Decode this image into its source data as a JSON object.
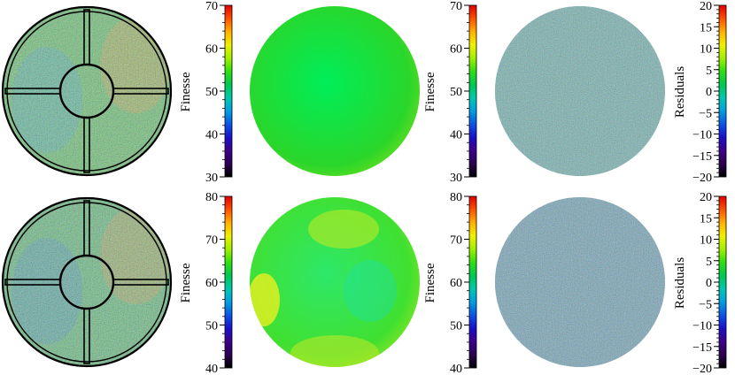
{
  "colormap": [
    "#000000",
    "#2a0052",
    "#3d008a",
    "#1a10c8",
    "#0a55e6",
    "#00a0e0",
    "#00c8b0",
    "#00c850",
    "#30e010",
    "#a0f000",
    "#f0f000",
    "#ffb000",
    "#ff5000",
    "#e00000"
  ],
  "chart_data": [
    {
      "type": "heatmap",
      "row": 1,
      "panel": "measured",
      "description_colors": {
        "base": "#55c05a",
        "accent_left": "#2f9de0",
        "accent_right": "#d8a43a"
      },
      "has_cross_mask": true
    },
    {
      "type": "colorbar",
      "row": 1,
      "label": "Finesse",
      "range": [
        30,
        70
      ],
      "ticks": [
        30,
        40,
        50,
        60,
        70
      ],
      "minor_step": 2
    },
    {
      "type": "heatmap",
      "row": 1,
      "panel": "model",
      "colors": {
        "center": "#00ee5a",
        "edge": "#2ad62a",
        "rim": "#90e41a"
      }
    },
    {
      "type": "colorbar",
      "row": 1,
      "label": "Finesse",
      "range": [
        30,
        70
      ],
      "ticks": [
        30,
        40,
        50,
        60,
        70
      ],
      "minor_step": 2
    },
    {
      "type": "heatmap",
      "row": 1,
      "panel": "residuals",
      "colors": {
        "base": "#3aa89a"
      }
    },
    {
      "type": "colorbar",
      "row": 1,
      "label": "Residuals",
      "range": [
        -20,
        20
      ],
      "ticks": [
        -20,
        -15,
        -10,
        -5,
        0,
        5,
        10,
        15,
        20
      ],
      "minor_step": 1
    },
    {
      "type": "heatmap",
      "row": 2,
      "panel": "measured",
      "description_colors": {
        "base": "#4fb86a",
        "accent_left": "#3080d8",
        "accent_right": "#d0a040"
      },
      "has_cross_mask": true
    },
    {
      "type": "colorbar",
      "row": 2,
      "label": "Finesse",
      "range": [
        40,
        80
      ],
      "ticks": [
        40,
        50,
        60,
        70,
        80
      ],
      "minor_step": 2
    },
    {
      "type": "heatmap",
      "row": 2,
      "panel": "model",
      "colors": {
        "center": "#2ee86a",
        "edge": "#40e030",
        "rim": "#b0e820"
      }
    },
    {
      "type": "colorbar",
      "row": 2,
      "label": "Finesse",
      "range": [
        40,
        80
      ],
      "ticks": [
        40,
        50,
        60,
        70,
        80
      ],
      "minor_step": 2
    },
    {
      "type": "heatmap",
      "row": 2,
      "panel": "residuals",
      "colors": {
        "base": "#3a92a8"
      }
    },
    {
      "type": "colorbar",
      "row": 2,
      "label": "Residuals",
      "range": [
        -20,
        20
      ],
      "ticks": [
        -20,
        -15,
        -10,
        -5,
        0,
        5,
        10,
        15,
        20
      ],
      "minor_step": 1
    }
  ]
}
